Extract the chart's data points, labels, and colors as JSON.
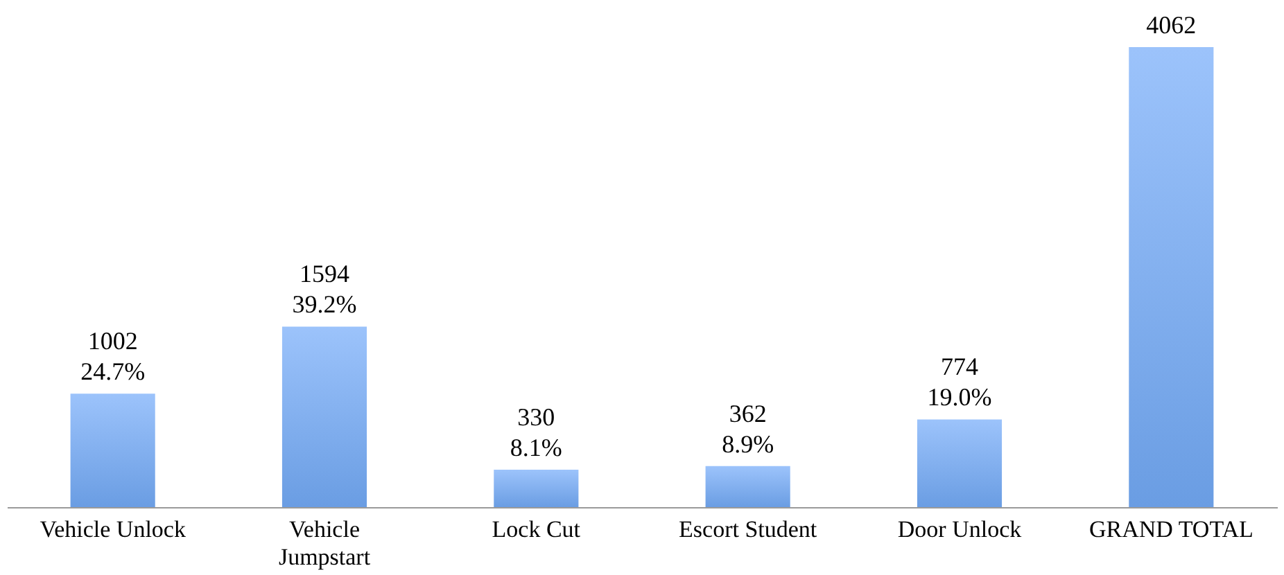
{
  "chart_data": {
    "type": "bar",
    "categories": [
      "Vehicle Unlock",
      "Vehicle Jumpstart",
      "Lock Cut",
      "Escort Student",
      "Door Unlock",
      "GRAND TOTAL"
    ],
    "values": [
      1002,
      1594,
      330,
      362,
      774,
      4062
    ],
    "value_labels": [
      "1002\n24.7%",
      "1594\n39.2%",
      "330\n8.1%",
      "362\n8.9%",
      "774\n19.0%",
      "4062"
    ],
    "color": "#6a9de3"
  }
}
